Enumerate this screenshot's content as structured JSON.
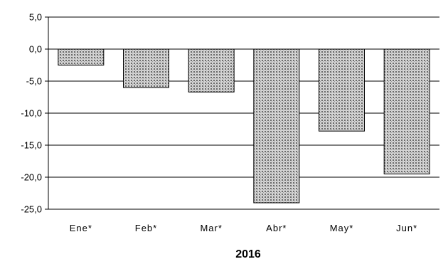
{
  "chart_data": {
    "type": "bar",
    "categories": [
      "Ene*",
      "Feb*",
      "Mar*",
      "Abr*",
      "May*",
      "Jun*"
    ],
    "values": [
      -2.5,
      -6.0,
      -6.7,
      -24.0,
      -12.8,
      -19.5
    ],
    "xlabel": "2016",
    "ylim": [
      -25,
      5
    ],
    "yticks": [
      5,
      0,
      -5,
      -10,
      -15,
      -20,
      -25
    ],
    "ytick_labels": [
      "5,0",
      "0,0",
      "-5,0",
      "-10,0",
      "-15,0",
      "-20,0",
      "-25,0"
    ],
    "grid": true,
    "bar_fill": "#c8c8c8",
    "bar_pattern": "dotted-hatch",
    "bar_stroke": "#000000"
  }
}
